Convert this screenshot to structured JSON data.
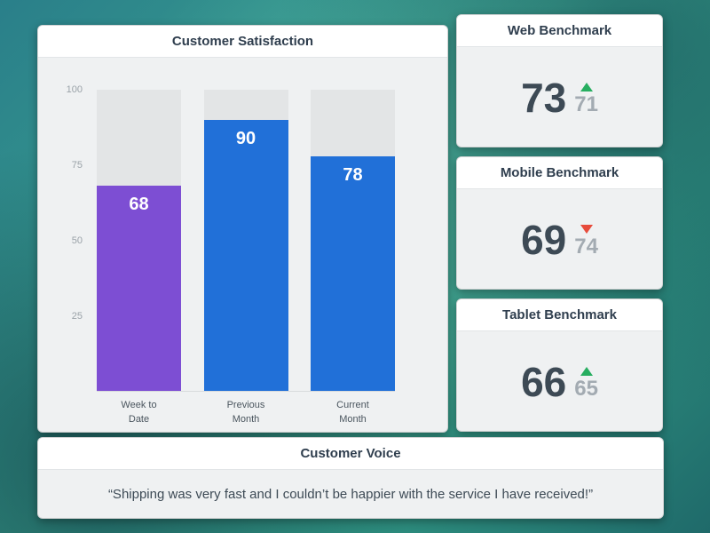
{
  "chart_card": {
    "title": "Customer Satisfaction"
  },
  "chart_data": {
    "type": "bar",
    "title": "Customer Satisfaction",
    "categories": [
      "Week to Date",
      "Previous Month",
      "Current Month"
    ],
    "values": [
      68,
      90,
      78
    ],
    "ylim": [
      0,
      100
    ],
    "ytick_labels": [
      "100",
      "75",
      "50",
      "25"
    ],
    "bar_colors": [
      "#7d4ed3",
      "#2170d8",
      "#2170d8"
    ],
    "track_color": "#e3e5e6",
    "grid": false,
    "value_labels": "inside-top-of-bar",
    "xlabel": "",
    "ylabel": ""
  },
  "benchmarks": [
    {
      "title": "Web Benchmark",
      "value": "73",
      "previous": "71",
      "trend": "up"
    },
    {
      "title": "Mobile Benchmark",
      "value": "69",
      "previous": "74",
      "trend": "down"
    },
    {
      "title": "Tablet Benchmark",
      "value": "66",
      "previous": "65",
      "trend": "up"
    }
  ],
  "customer_voice": {
    "title": "Customer Voice",
    "quote": "“Shipping was very fast and I couldn’t be happier with the service I have received!”"
  },
  "colors": {
    "trend_up": "#27ae60",
    "trend_down": "#e74c3c",
    "bar_purple": "#7d4ed3",
    "bar_blue": "#2170d8",
    "card_body": "#eff1f2",
    "card_header": "#ffffff"
  }
}
